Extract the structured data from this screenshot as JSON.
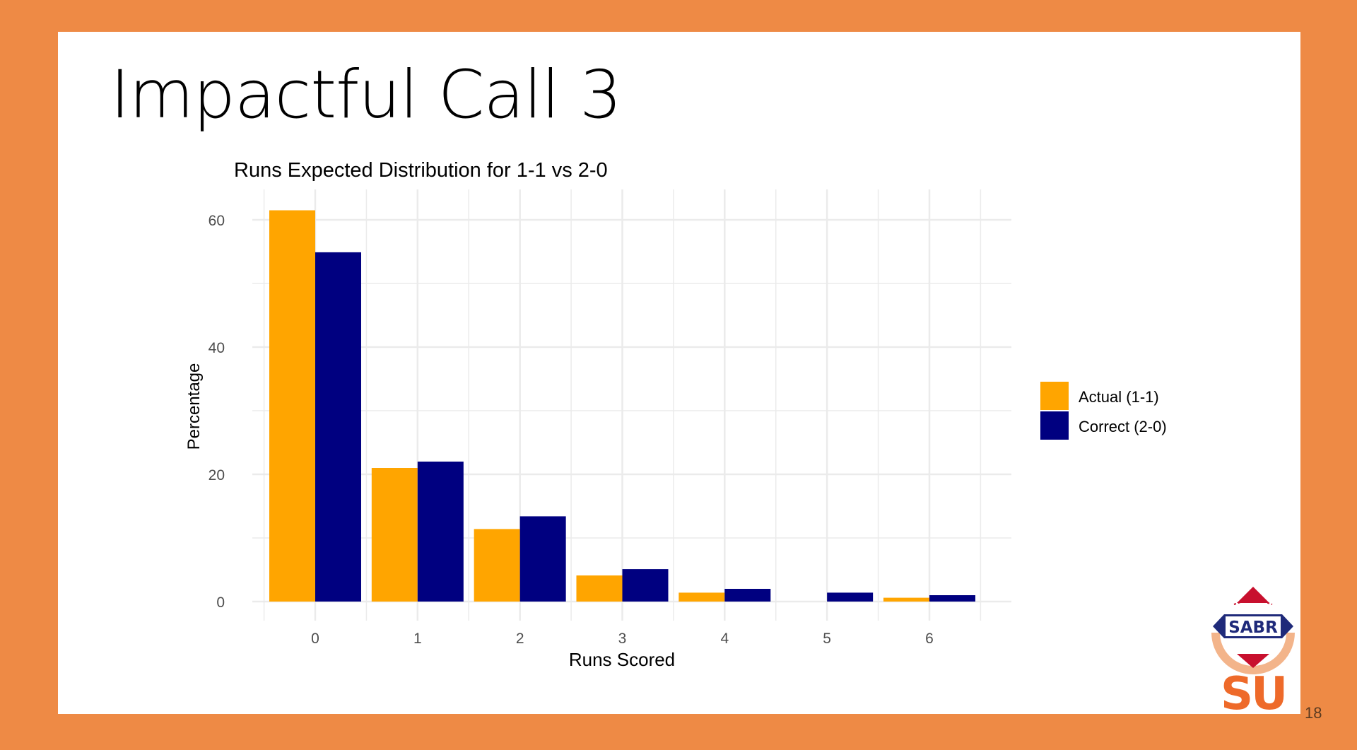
{
  "slide": {
    "title": "Impactful Call 3",
    "page_number": "18"
  },
  "logo": {
    "top_text": "SABR",
    "bottom_text": "SU"
  },
  "colors": {
    "background": "#EE8A45",
    "content": "#FFFFFF",
    "actual": "#FFA500",
    "correct": "#000080",
    "grid": "#EBEBEB"
  },
  "chart_data": {
    "type": "bar",
    "title": "Runs Expected Distribution for 1-1 vs 2-0",
    "xlabel": "Runs Scored",
    "ylabel": "Percentage",
    "categories": [
      "0",
      "1",
      "2",
      "3",
      "4",
      "5",
      "6"
    ],
    "ylim": [
      0,
      65
    ],
    "yticks": [
      0,
      20,
      40,
      60
    ],
    "series": [
      {
        "name": "Actual (1-1)",
        "color": "#FFA500",
        "values": [
          61.5,
          21.0,
          11.4,
          4.1,
          1.4,
          null,
          0.6
        ]
      },
      {
        "name": "Correct (2-0)",
        "color": "#000080",
        "values": [
          54.9,
          22.0,
          13.4,
          5.1,
          2.0,
          1.4,
          1.0
        ]
      }
    ],
    "grid": true,
    "legend": "right"
  }
}
